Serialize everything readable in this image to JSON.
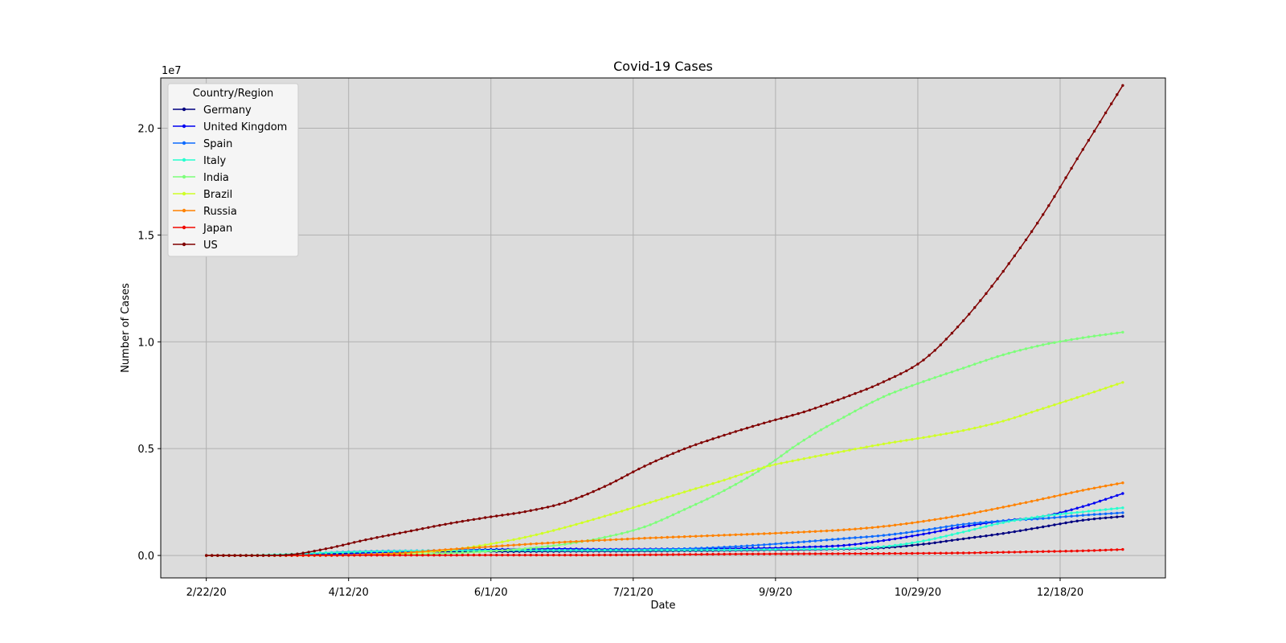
{
  "chart_data": {
    "type": "line",
    "title": "Covid-19 Cases",
    "xlabel": "Date",
    "ylabel": "Number of Cases",
    "y_offset_label": "1e7",
    "x_ticks": [
      "2/22/20",
      "4/12/20",
      "6/1/20",
      "7/21/20",
      "9/9/20",
      "10/29/20",
      "12/18/20"
    ],
    "y_ticks": [
      "0.0",
      "0.5",
      "1.0",
      "1.5",
      "2.0"
    ],
    "x_range": [
      "2/6/20",
      "1/24/21"
    ],
    "ylim": [
      -1050000,
      22350000
    ],
    "grid": true,
    "legend": {
      "title": "Country/Region",
      "placement": "top-left"
    },
    "x_dates": [
      "2/22/20",
      "3/7/20",
      "3/21/20",
      "4/4/20",
      "4/18/20",
      "5/2/20",
      "5/16/20",
      "5/30/20",
      "6/13/20",
      "6/27/20",
      "7/11/20",
      "7/25/20",
      "8/8/20",
      "8/22/20",
      "9/5/20",
      "9/19/20",
      "10/3/20",
      "10/17/20",
      "10/31/20",
      "11/14/20",
      "11/28/20",
      "12/12/20",
      "12/26/20",
      "1/9/21"
    ],
    "series": [
      {
        "name": "Germany",
        "color": "#000080",
        "values": [
          16,
          800,
          22000,
          96000,
          143000,
          165000,
          175000,
          183000,
          187000,
          194000,
          199000,
          206000,
          216000,
          232000,
          251000,
          271000,
          300000,
          360000,
          530000,
          780000,
          1030000,
          1340000,
          1650000,
          1830000
        ]
      },
      {
        "name": "United Kingdom",
        "color": "#0000f1",
        "values": [
          9,
          270,
          5000,
          42000,
          115000,
          184000,
          241000,
          274000,
          296000,
          311000,
          289000,
          298000,
          310000,
          325000,
          345000,
          390000,
          470000,
          700000,
          1000000,
          1350000,
          1620000,
          1830000,
          2290000,
          2900000
        ]
      },
      {
        "name": "Spain",
        "color": "#0d6bff",
        "values": [
          2,
          500,
          25000,
          127000,
          192000,
          216000,
          231000,
          239000,
          243000,
          249000,
          254000,
          273000,
          315000,
          390000,
          500000,
          640000,
          790000,
          940000,
          1180000,
          1460000,
          1620000,
          1730000,
          1880000,
          2000000
        ]
      },
      {
        "name": "Italy",
        "color": "#27ffcf",
        "values": [
          62,
          5900,
          53500,
          124000,
          175000,
          209000,
          225000,
          232000,
          236000,
          240000,
          243000,
          246000,
          250000,
          260000,
          277000,
          296000,
          322000,
          414000,
          680000,
          1100000,
          1540000,
          1840000,
          2040000,
          2230000
        ]
      },
      {
        "name": "India",
        "color": "#7dff7a",
        "values": [
          3,
          31,
          330,
          3000,
          15700,
          39900,
          95000,
          182000,
          320000,
          528000,
          850000,
          1340000,
          2150000,
          3040000,
          4110000,
          5400000,
          6470000,
          7430000,
          8140000,
          8770000,
          9390000,
          9860000,
          10190000,
          10450000
        ]
      },
      {
        "name": "Brazil",
        "color": "#cfff27",
        "values": [
          0,
          19,
          1000,
          10000,
          36600,
          97100,
          233000,
          498000,
          850000,
          1310000,
          1840000,
          2400000,
          2970000,
          3530000,
          4130000,
          4530000,
          4880000,
          5220000,
          5520000,
          5850000,
          6290000,
          6880000,
          7480000,
          8100000
        ]
      },
      {
        "name": "Russia",
        "color": "#ff8200",
        "values": [
          2,
          13,
          300,
          5400,
          42800,
          124000,
          272000,
          396000,
          520000,
          627000,
          720000,
          807000,
          880000,
          950000,
          1020000,
          1100000,
          1200000,
          1360000,
          1600000,
          1900000,
          2260000,
          2650000,
          3050000,
          3400000
        ]
      },
      {
        "name": "Japan",
        "color": "#f10800",
        "values": [
          105,
          460,
          1000,
          3300,
          10300,
          14800,
          16300,
          16800,
          17400,
          18500,
          21500,
          30500,
          45500,
          61200,
          71400,
          78100,
          84800,
          91400,
          101800,
          117600,
          149100,
          182300,
          218500,
          280000
        ]
      },
      {
        "name": "US",
        "color": "#800000",
        "values": [
          15,
          400,
          25500,
          312000,
          732000,
          1100000,
          1460000,
          1770000,
          2050000,
          2480000,
          3230000,
          4180000,
          4990000,
          5630000,
          6200000,
          6720000,
          7380000,
          8130000,
          9150000,
          10990000,
          13300000,
          15960000,
          19000000,
          22000000
        ]
      }
    ]
  }
}
